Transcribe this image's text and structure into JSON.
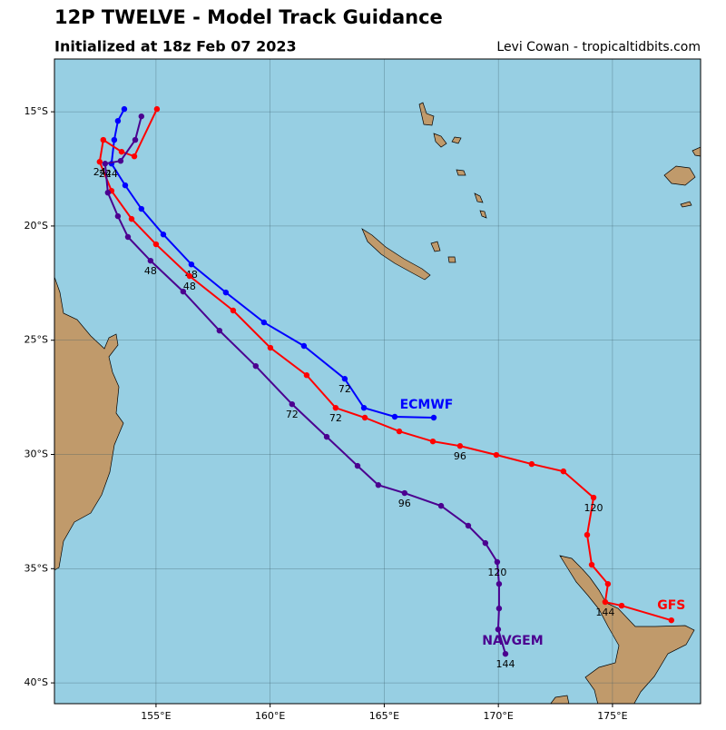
{
  "chart_data": {
    "type": "map",
    "title": "12P TWELVE - Model Track Guidance",
    "subtitle": "Initialized at 18z Feb 07 2023",
    "credit": "Levi Cowan - tropicaltidbits.com",
    "xlim": [
      150.55,
      178.86
    ],
    "ylim": [
      -40.91,
      -12.69
    ],
    "xticks": [
      {
        "value": 155,
        "label": "155°E"
      },
      {
        "value": 160,
        "label": "160°E"
      },
      {
        "value": 165,
        "label": "165°E"
      },
      {
        "value": 170,
        "label": "170°E"
      },
      {
        "value": 175,
        "label": "175°E"
      }
    ],
    "yticks": [
      {
        "value": -15,
        "label": "15°S"
      },
      {
        "value": -20,
        "label": "20°S"
      },
      {
        "value": -25,
        "label": "25°S"
      },
      {
        "value": -30,
        "label": "30°S"
      },
      {
        "value": -35,
        "label": "35°S"
      },
      {
        "value": -40,
        "label": "40°S"
      }
    ],
    "grid": true,
    "series": [
      {
        "name": "ECMWF",
        "color": "#0000ff",
        "x": [
          153.61,
          153.33,
          153.17,
          153.05,
          153.65,
          154.36,
          155.32,
          156.55,
          158.06,
          159.73,
          161.48,
          163.27,
          164.11,
          165.46,
          167.17
        ],
        "values": [
          -14.88,
          -15.4,
          -16.23,
          -17.27,
          -18.22,
          -19.25,
          -20.37,
          -21.68,
          -22.91,
          -24.22,
          -25.25,
          -26.69,
          -27.96,
          -28.35,
          -28.39
        ],
        "hour_labels": [
          null,
          null,
          null,
          24,
          null,
          null,
          null,
          48,
          null,
          null,
          null,
          72,
          null,
          null,
          null
        ]
      },
      {
        "name": "GFS",
        "color": "#ff0000",
        "x": [
          155.04,
          154.05,
          153.49,
          152.69,
          152.53,
          153.05,
          153.93,
          155.0,
          156.47,
          158.38,
          160.01,
          161.6,
          162.87,
          164.15,
          165.66,
          167.13,
          168.32,
          169.91,
          171.46,
          172.85,
          174.17,
          173.89,
          174.09,
          174.8,
          174.68,
          175.4,
          177.58
        ],
        "values": [
          -14.88,
          -16.95,
          -16.75,
          -16.23,
          -17.19,
          -18.46,
          -19.69,
          -20.8,
          -22.19,
          -23.7,
          -25.33,
          -26.53,
          -27.96,
          -28.39,
          -28.99,
          -29.43,
          -29.63,
          -30.02,
          -30.42,
          -30.74,
          -31.89,
          -33.52,
          -34.83,
          -35.67,
          -36.46,
          -36.62,
          -37.26
        ],
        "hour_labels": [
          null,
          null,
          null,
          null,
          24,
          null,
          null,
          null,
          48,
          null,
          null,
          null,
          72,
          null,
          null,
          null,
          96,
          null,
          null,
          null,
          120,
          null,
          null,
          null,
          144,
          null,
          null
        ]
      },
      {
        "name": "NAVGEM",
        "color": "#4b0090",
        "x": [
          154.36,
          154.09,
          153.45,
          152.77,
          152.89,
          153.33,
          153.77,
          154.76,
          156.19,
          157.78,
          159.37,
          160.96,
          162.48,
          163.83,
          164.74,
          165.89,
          167.49,
          168.68,
          169.43,
          169.95,
          170.03,
          170.03,
          169.99,
          170.31
        ],
        "values": [
          -15.2,
          -16.23,
          -17.15,
          -17.27,
          -18.54,
          -19.57,
          -20.48,
          -21.52,
          -22.87,
          -24.58,
          -26.13,
          -27.8,
          -29.23,
          -30.5,
          -31.34,
          -31.69,
          -32.25,
          -33.12,
          -33.88,
          -34.71,
          -35.67,
          -36.74,
          -37.66,
          -38.73
        ],
        "hour_labels": [
          null,
          null,
          null,
          24,
          null,
          null,
          null,
          48,
          null,
          null,
          null,
          72,
          null,
          null,
          null,
          96,
          null,
          null,
          null,
          120,
          null,
          null,
          null,
          144
        ]
      }
    ]
  }
}
